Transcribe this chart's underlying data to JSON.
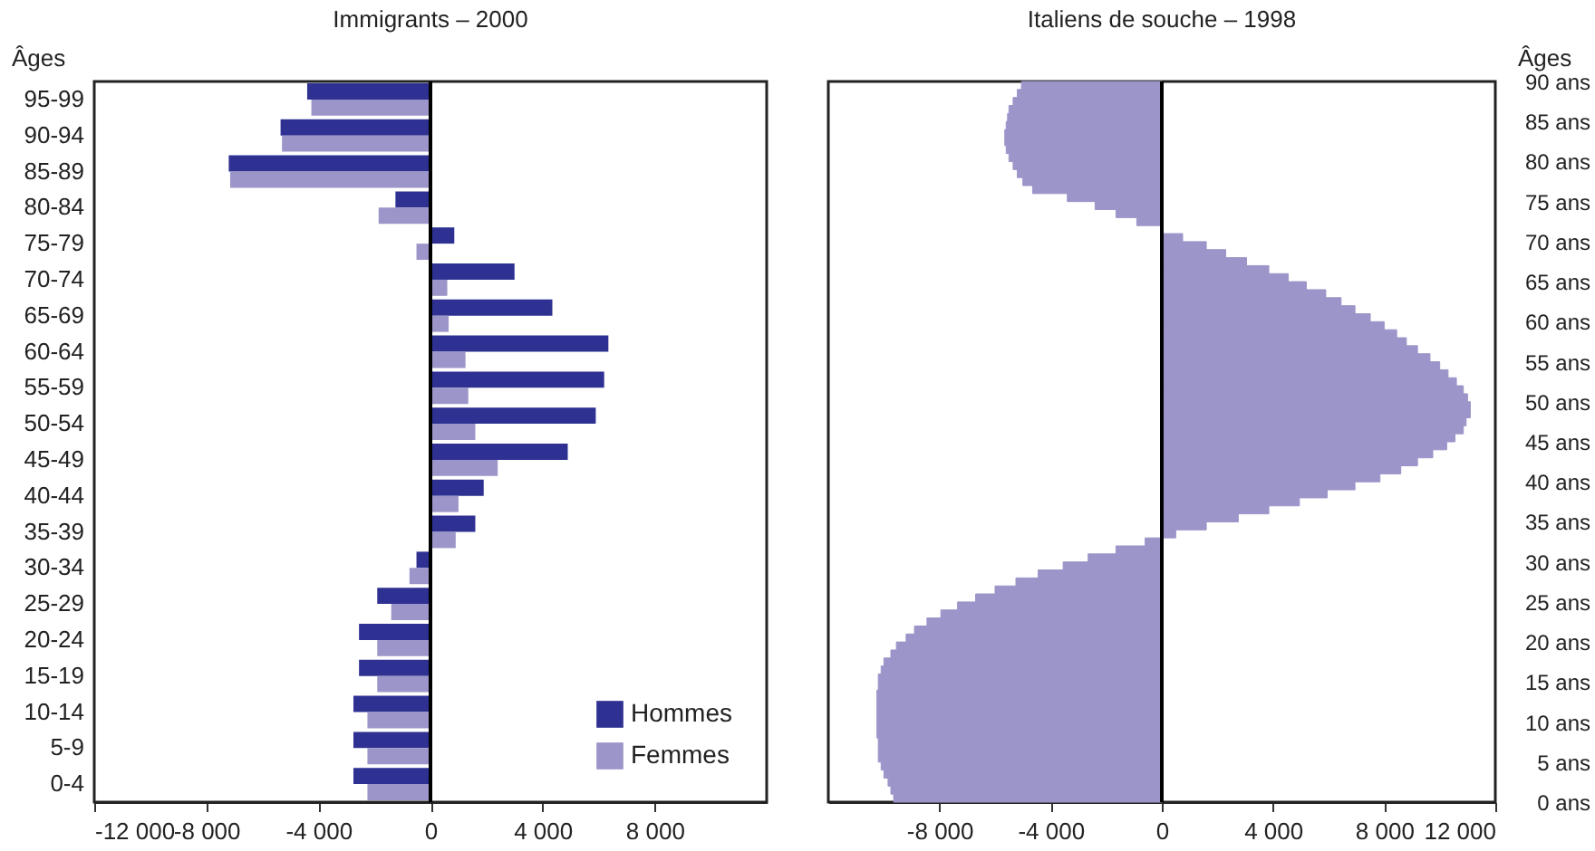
{
  "chart_data": [
    {
      "type": "bar",
      "orientation": "horizontal",
      "title": "Immigrants  –  2000",
      "ylabel": "Âges",
      "categories": [
        "95-99",
        "90-94",
        "85-89",
        "80-84",
        "75-79",
        "70-74",
        "65-69",
        "60-64",
        "55-59",
        "50-54",
        "45-49",
        "40-44",
        "35-39",
        "30-34",
        "25-29",
        "20-24",
        "15-19",
        "10-14",
        "5-9",
        "0-4"
      ],
      "series": [
        {
          "name": "Hommes",
          "color": "#2e3192",
          "values": [
            -4400,
            -5350,
            -7200,
            -1250,
            850,
            3000,
            4350,
            6350,
            6200,
            5900,
            4900,
            1900,
            1600,
            -500,
            -1900,
            -2550,
            -2550,
            -2750,
            -2750,
            -2750
          ]
        },
        {
          "name": "Femmes",
          "color": "#9c95c9",
          "values": [
            -4250,
            -5300,
            -7150,
            -1850,
            -500,
            600,
            650,
            1250,
            1350,
            1600,
            2400,
            1000,
            900,
            -750,
            -1400,
            -1900,
            -1900,
            -2250,
            -2250,
            -2250
          ]
        }
      ],
      "xlim": [
        -12000,
        12000
      ],
      "xticks": [
        {
          "value": -12000,
          "label": "-12 000"
        },
        {
          "value": -8000,
          "label": "-8 000"
        },
        {
          "value": -4000,
          "label": "-4 000"
        },
        0,
        {
          "value": 4000,
          "label": "4 000"
        },
        {
          "value": 8000,
          "label": "8 000"
        }
      ],
      "legend": "bottom right",
      "ref_lines": [
        {
          "axis": "x",
          "value": 0,
          "color": "#000000"
        }
      ]
    },
    {
      "type": "bar",
      "orientation": "horizontal",
      "title": "Italiens de souche  –  1998",
      "ylabel": "Âges",
      "color": "#9c95c9",
      "x": [
        0,
        1,
        2,
        3,
        4,
        5,
        6,
        7,
        8,
        9,
        10,
        11,
        12,
        13,
        14,
        15,
        16,
        17,
        18,
        19,
        20,
        21,
        22,
        23,
        24,
        25,
        26,
        27,
        28,
        29,
        30,
        31,
        32,
        33,
        34,
        35,
        36,
        37,
        38,
        39,
        40,
        41,
        42,
        43,
        44,
        45,
        46,
        47,
        48,
        49,
        50,
        51,
        52,
        53,
        54,
        55,
        56,
        57,
        58,
        59,
        60,
        61,
        62,
        63,
        64,
        65,
        66,
        67,
        68,
        69,
        70,
        71,
        72,
        73,
        74,
        75,
        76,
        77,
        78,
        79,
        80,
        81,
        82,
        83,
        84,
        85,
        86,
        87,
        88,
        89
      ],
      "values": [
        -9650,
        -9750,
        -9850,
        -10000,
        -10100,
        -10200,
        -10200,
        -10200,
        -10250,
        -10250,
        -10250,
        -10250,
        -10250,
        -10250,
        -10200,
        -10200,
        -10100,
        -10000,
        -9750,
        -9550,
        -9200,
        -8900,
        -8450,
        -7950,
        -7350,
        -6700,
        -6000,
        -5250,
        -4450,
        -3550,
        -2650,
        -1650,
        -600,
        500,
        1600,
        2750,
        3850,
        4950,
        5950,
        6950,
        7850,
        8600,
        9200,
        9750,
        10250,
        10550,
        10850,
        10950,
        11100,
        11100,
        11000,
        10850,
        10600,
        10300,
        10000,
        9650,
        9200,
        8800,
        8450,
        8000,
        7500,
        6950,
        6450,
        5900,
        5200,
        4550,
        3850,
        3050,
        2300,
        1600,
        750,
        0,
        -900,
        -1650,
        -2400,
        -3400,
        -4650,
        -5000,
        -5200,
        -5350,
        -5500,
        -5600,
        -5650,
        -5650,
        -5600,
        -5550,
        -5500,
        -5350,
        -5200,
        -5050
      ],
      "xlim": [
        -12000,
        12000
      ],
      "xticks": [
        {
          "value": -8000,
          "label": "-8 000"
        },
        {
          "value": -4000,
          "label": "-4 000"
        },
        0,
        {
          "value": 4000,
          "label": "4 000"
        },
        {
          "value": 8000,
          "label": "8 000"
        },
        {
          "value": 12000,
          "label": "12 000"
        }
      ],
      "ylim": [
        0,
        90
      ],
      "yticks": [
        {
          "value": 0,
          "label": "0 ans"
        },
        {
          "value": 5,
          "label": "5 ans"
        },
        {
          "value": 10,
          "label": "10 ans"
        },
        {
          "value": 15,
          "label": "15 ans"
        },
        {
          "value": 20,
          "label": "20 ans"
        },
        {
          "value": 25,
          "label": "25 ans"
        },
        {
          "value": 30,
          "label": "30 ans"
        },
        {
          "value": 35,
          "label": "35 ans"
        },
        {
          "value": 40,
          "label": "40 ans"
        },
        {
          "value": 45,
          "label": "45 ans"
        },
        {
          "value": 50,
          "label": "50 ans"
        },
        {
          "value": 55,
          "label": "55 ans"
        },
        {
          "value": 60,
          "label": "60 ans"
        },
        {
          "value": 65,
          "label": "65 ans"
        },
        {
          "value": 70,
          "label": "70 ans"
        },
        {
          "value": 75,
          "label": "75 ans"
        },
        {
          "value": 80,
          "label": "80 ans"
        },
        {
          "value": 85,
          "label": "85 ans"
        },
        {
          "value": 90,
          "label": "90 ans"
        }
      ],
      "ref_lines": [
        {
          "axis": "x",
          "value": 0,
          "color": "#000000"
        }
      ]
    }
  ]
}
